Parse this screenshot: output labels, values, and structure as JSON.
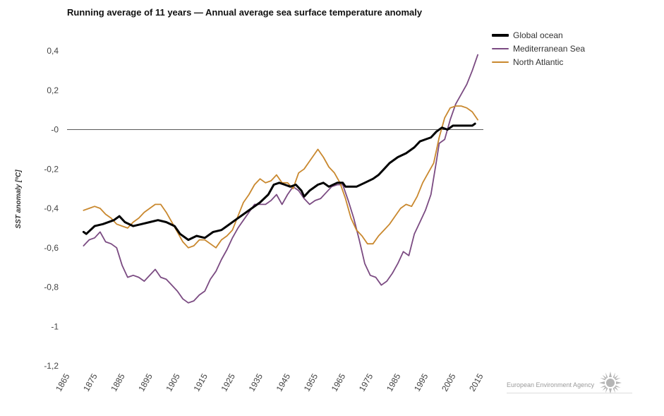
{
  "chart_data": {
    "type": "line",
    "title": "Running average of 11 years — Annual average sea surface temperature anomaly",
    "ylabel": "SST anomaly [ºC]",
    "xlabel": "",
    "xlim": [
      1865,
      2015
    ],
    "ylim": [
      -1.2,
      0.5
    ],
    "x_ticks": [
      "1865",
      "1875",
      "1885",
      "1895",
      "1905",
      "1915",
      "1925",
      "1935",
      "1945",
      "1955",
      "1965",
      "1975",
      "1985",
      "1995",
      "2005",
      "2015"
    ],
    "y_ticks": [
      "0,4",
      "0,2",
      "-0",
      "-0,2",
      "-0,4",
      "-0,6",
      "-0,8",
      "-1",
      "-1,2"
    ],
    "legend_position": "top-right",
    "zero_line": true,
    "series": [
      {
        "name": "Global ocean",
        "color": "#000000",
        "points": [
          [
            1871,
            -0.52
          ],
          [
            1872,
            -0.53
          ],
          [
            1875,
            -0.49
          ],
          [
            1878,
            -0.48
          ],
          [
            1882,
            -0.46
          ],
          [
            1884,
            -0.44
          ],
          [
            1886,
            -0.47
          ],
          [
            1889,
            -0.49
          ],
          [
            1892,
            -0.48
          ],
          [
            1895,
            -0.47
          ],
          [
            1898,
            -0.46
          ],
          [
            1901,
            -0.47
          ],
          [
            1904,
            -0.49
          ],
          [
            1906,
            -0.53
          ],
          [
            1909,
            -0.56
          ],
          [
            1912,
            -0.54
          ],
          [
            1915,
            -0.55
          ],
          [
            1918,
            -0.52
          ],
          [
            1921,
            -0.51
          ],
          [
            1923,
            -0.49
          ],
          [
            1926,
            -0.46
          ],
          [
            1929,
            -0.43
          ],
          [
            1932,
            -0.4
          ],
          [
            1935,
            -0.37
          ],
          [
            1938,
            -0.33
          ],
          [
            1940,
            -0.28
          ],
          [
            1942,
            -0.27
          ],
          [
            1944,
            -0.28
          ],
          [
            1946,
            -0.29
          ],
          [
            1948,
            -0.28
          ],
          [
            1950,
            -0.31
          ],
          [
            1951,
            -0.34
          ],
          [
            1953,
            -0.31
          ],
          [
            1956,
            -0.28
          ],
          [
            1958,
            -0.27
          ],
          [
            1960,
            -0.29
          ],
          [
            1963,
            -0.27
          ],
          [
            1965,
            -0.27
          ],
          [
            1966,
            -0.29
          ],
          [
            1970,
            -0.29
          ],
          [
            1973,
            -0.27
          ],
          [
            1976,
            -0.25
          ],
          [
            1978,
            -0.23
          ],
          [
            1980,
            -0.2
          ],
          [
            1982,
            -0.17
          ],
          [
            1985,
            -0.14
          ],
          [
            1988,
            -0.12
          ],
          [
            1991,
            -0.09
          ],
          [
            1993,
            -0.06
          ],
          [
            1995,
            -0.05
          ],
          [
            1997,
            -0.04
          ],
          [
            1999,
            -0.01
          ],
          [
            2001,
            0.01
          ],
          [
            2003,
            0.0
          ],
          [
            2005,
            0.02
          ],
          [
            2008,
            0.02
          ],
          [
            2011,
            0.02
          ],
          [
            2012,
            0.02
          ],
          [
            2013,
            0.03
          ]
        ]
      },
      {
        "name": "Mediterranean Sea",
        "color": "#7b4b82",
        "points": [
          [
            1871,
            -0.59
          ],
          [
            1873,
            -0.56
          ],
          [
            1875,
            -0.55
          ],
          [
            1877,
            -0.52
          ],
          [
            1879,
            -0.57
          ],
          [
            1881,
            -0.58
          ],
          [
            1883,
            -0.6
          ],
          [
            1885,
            -0.69
          ],
          [
            1887,
            -0.75
          ],
          [
            1889,
            -0.74
          ],
          [
            1891,
            -0.75
          ],
          [
            1893,
            -0.77
          ],
          [
            1895,
            -0.74
          ],
          [
            1897,
            -0.71
          ],
          [
            1899,
            -0.75
          ],
          [
            1901,
            -0.76
          ],
          [
            1903,
            -0.79
          ],
          [
            1905,
            -0.82
          ],
          [
            1907,
            -0.86
          ],
          [
            1909,
            -0.88
          ],
          [
            1911,
            -0.87
          ],
          [
            1913,
            -0.84
          ],
          [
            1915,
            -0.82
          ],
          [
            1917,
            -0.76
          ],
          [
            1919,
            -0.72
          ],
          [
            1921,
            -0.66
          ],
          [
            1923,
            -0.61
          ],
          [
            1925,
            -0.55
          ],
          [
            1927,
            -0.5
          ],
          [
            1929,
            -0.46
          ],
          [
            1931,
            -0.42
          ],
          [
            1933,
            -0.38
          ],
          [
            1935,
            -0.38
          ],
          [
            1937,
            -0.38
          ],
          [
            1939,
            -0.36
          ],
          [
            1941,
            -0.33
          ],
          [
            1943,
            -0.38
          ],
          [
            1945,
            -0.33
          ],
          [
            1947,
            -0.29
          ],
          [
            1949,
            -0.31
          ],
          [
            1951,
            -0.35
          ],
          [
            1953,
            -0.38
          ],
          [
            1955,
            -0.36
          ],
          [
            1957,
            -0.35
          ],
          [
            1959,
            -0.32
          ],
          [
            1961,
            -0.29
          ],
          [
            1963,
            -0.28
          ],
          [
            1965,
            -0.28
          ],
          [
            1967,
            -0.36
          ],
          [
            1969,
            -0.45
          ],
          [
            1971,
            -0.56
          ],
          [
            1973,
            -0.68
          ],
          [
            1975,
            -0.74
          ],
          [
            1977,
            -0.75
          ],
          [
            1979,
            -0.79
          ],
          [
            1981,
            -0.77
          ],
          [
            1983,
            -0.73
          ],
          [
            1985,
            -0.68
          ],
          [
            1987,
            -0.62
          ],
          [
            1989,
            -0.64
          ],
          [
            1991,
            -0.53
          ],
          [
            1993,
            -0.47
          ],
          [
            1995,
            -0.41
          ],
          [
            1997,
            -0.33
          ],
          [
            1999,
            -0.16
          ],
          [
            2000,
            -0.07
          ],
          [
            2002,
            -0.05
          ],
          [
            2004,
            0.05
          ],
          [
            2006,
            0.13
          ],
          [
            2008,
            0.18
          ],
          [
            2010,
            0.23
          ],
          [
            2012,
            0.3
          ],
          [
            2014,
            0.38
          ]
        ]
      },
      {
        "name": "North Atlantic",
        "color": "#c9882e",
        "points": [
          [
            1871,
            -0.41
          ],
          [
            1873,
            -0.4
          ],
          [
            1875,
            -0.39
          ],
          [
            1877,
            -0.4
          ],
          [
            1879,
            -0.43
          ],
          [
            1881,
            -0.45
          ],
          [
            1883,
            -0.48
          ],
          [
            1885,
            -0.49
          ],
          [
            1887,
            -0.5
          ],
          [
            1889,
            -0.47
          ],
          [
            1891,
            -0.45
          ],
          [
            1893,
            -0.42
          ],
          [
            1895,
            -0.4
          ],
          [
            1897,
            -0.38
          ],
          [
            1899,
            -0.38
          ],
          [
            1901,
            -0.42
          ],
          [
            1903,
            -0.47
          ],
          [
            1905,
            -0.52
          ],
          [
            1907,
            -0.57
          ],
          [
            1909,
            -0.6
          ],
          [
            1911,
            -0.59
          ],
          [
            1913,
            -0.56
          ],
          [
            1915,
            -0.56
          ],
          [
            1917,
            -0.58
          ],
          [
            1919,
            -0.6
          ],
          [
            1921,
            -0.56
          ],
          [
            1923,
            -0.54
          ],
          [
            1925,
            -0.51
          ],
          [
            1927,
            -0.44
          ],
          [
            1929,
            -0.37
          ],
          [
            1931,
            -0.33
          ],
          [
            1933,
            -0.28
          ],
          [
            1935,
            -0.25
          ],
          [
            1937,
            -0.27
          ],
          [
            1939,
            -0.26
          ],
          [
            1941,
            -0.23
          ],
          [
            1943,
            -0.27
          ],
          [
            1945,
            -0.27
          ],
          [
            1947,
            -0.3
          ],
          [
            1949,
            -0.22
          ],
          [
            1951,
            -0.2
          ],
          [
            1953,
            -0.16
          ],
          [
            1955,
            -0.12
          ],
          [
            1956,
            -0.1
          ],
          [
            1958,
            -0.14
          ],
          [
            1960,
            -0.19
          ],
          [
            1962,
            -0.22
          ],
          [
            1964,
            -0.27
          ],
          [
            1966,
            -0.35
          ],
          [
            1968,
            -0.45
          ],
          [
            1970,
            -0.51
          ],
          [
            1972,
            -0.54
          ],
          [
            1974,
            -0.58
          ],
          [
            1976,
            -0.58
          ],
          [
            1978,
            -0.54
          ],
          [
            1980,
            -0.51
          ],
          [
            1982,
            -0.48
          ],
          [
            1984,
            -0.44
          ],
          [
            1986,
            -0.4
          ],
          [
            1988,
            -0.38
          ],
          [
            1990,
            -0.39
          ],
          [
            1992,
            -0.34
          ],
          [
            1994,
            -0.27
          ],
          [
            1996,
            -0.22
          ],
          [
            1998,
            -0.17
          ],
          [
            2000,
            -0.04
          ],
          [
            2002,
            0.06
          ],
          [
            2004,
            0.11
          ],
          [
            2006,
            0.12
          ],
          [
            2008,
            0.12
          ],
          [
            2010,
            0.11
          ],
          [
            2012,
            0.09
          ],
          [
            2014,
            0.05
          ]
        ]
      }
    ]
  },
  "footer": {
    "source": "European Environment Agency"
  }
}
